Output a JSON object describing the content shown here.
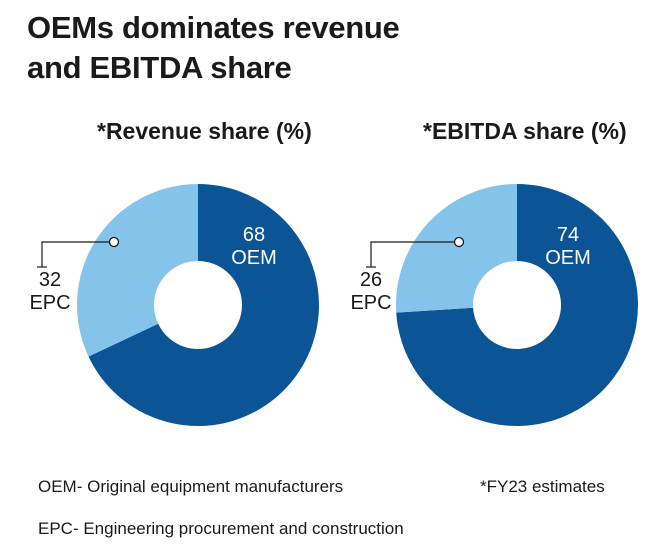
{
  "title": "OEMs dominates revenue and EBITDA share",
  "chart_data": [
    {
      "type": "pie",
      "title": "*Revenue share (%)",
      "slices": [
        {
          "label": "OEM",
          "value": 68,
          "color": "#0b5596"
        },
        {
          "label": "EPC",
          "value": 32,
          "color": "#84c4ea"
        }
      ]
    },
    {
      "type": "pie",
      "title": "*EBITDA share (%)",
      "slices": [
        {
          "label": "OEM",
          "value": 74,
          "color": "#0b5596"
        },
        {
          "label": "EPC",
          "value": 26,
          "color": "#84c4ea"
        }
      ]
    }
  ],
  "footnotes": {
    "oem": "OEM- Original equipment manufacturers",
    "epc": "EPC- Engineering procurement and construction",
    "fy": "*FY23 estimates"
  }
}
